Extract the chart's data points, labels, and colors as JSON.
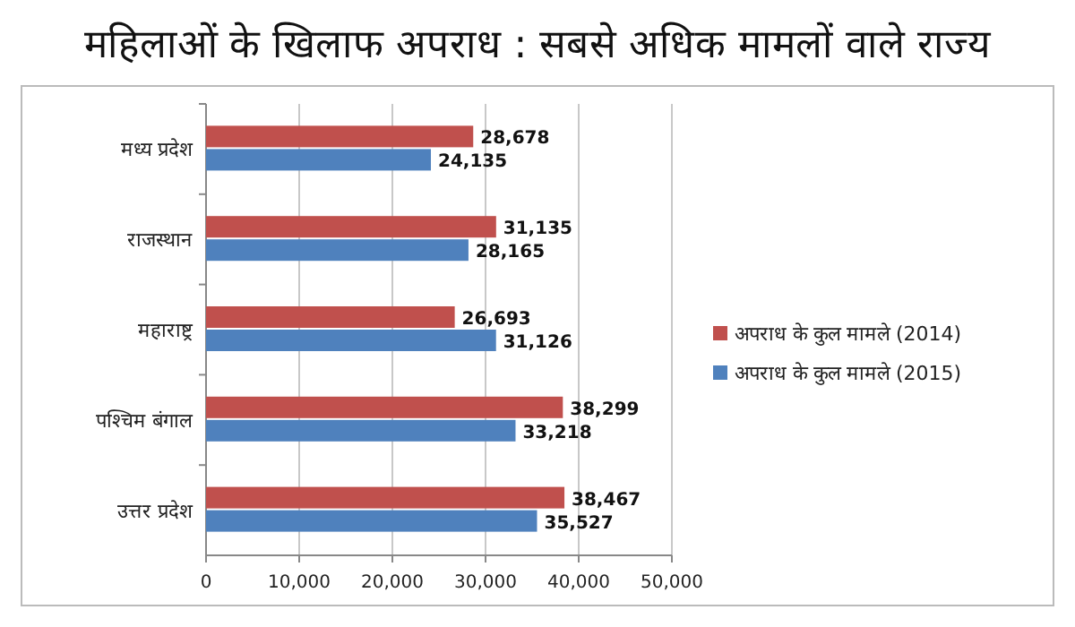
{
  "chart_data": {
    "type": "bar",
    "orientation": "horizontal",
    "title": "महिलाओं के खिलाफ अपराध : सबसे अधिक मामलों वाले राज्य",
    "categories": [
      "मध्य प्रदेश",
      "राजस्थान",
      "महाराष्ट्र",
      "पश्चिम बंगाल",
      "उत्तर प्रदेश"
    ],
    "series": [
      {
        "name": "अपराध के कुल मामले (2014)",
        "color": "#c0504d",
        "values": [
          28678,
          31135,
          26693,
          38299,
          38467
        ],
        "value_labels": [
          "28,678",
          "31,135",
          "26,693",
          "38,299",
          "38,467"
        ]
      },
      {
        "name": "अपराध के कुल मामले (2015)",
        "color": "#4f81bd",
        "values": [
          24135,
          28165,
          31126,
          33218,
          35527
        ],
        "value_labels": [
          "24,135",
          "28,165",
          "31,126",
          "33,218",
          "35,527"
        ]
      }
    ],
    "xlim": [
      0,
      50000
    ],
    "xticks": [
      0,
      {
        "value": 10000,
        "label": "10,000"
      },
      {
        "value": 20000,
        "label": "20,000"
      },
      {
        "value": 30000,
        "label": "30,000"
      },
      {
        "value": 40000,
        "label": "40,000"
      },
      {
        "value": 50000,
        "label": "50,000"
      }
    ],
    "grid": "x",
    "legend": "right"
  }
}
